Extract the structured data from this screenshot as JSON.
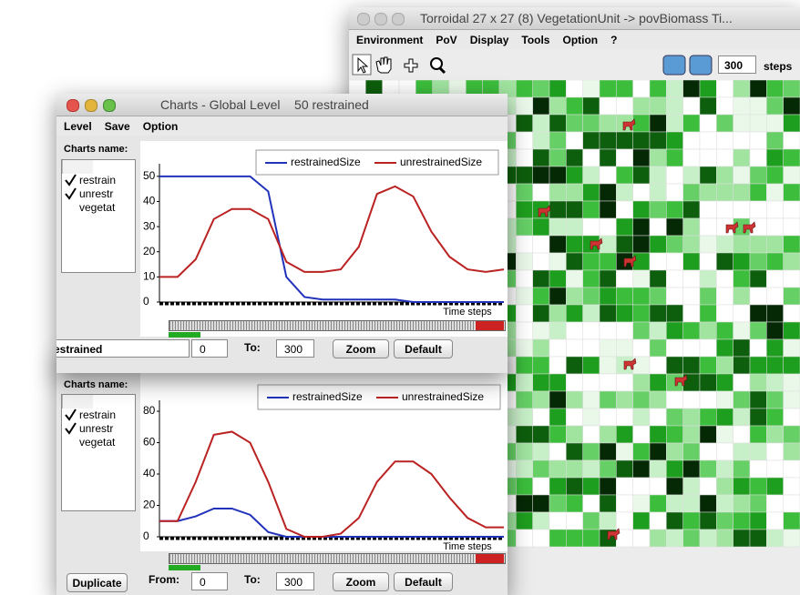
{
  "vegetation_window": {
    "title": "Torroidal 27 x 27 (8)  VegetationUnit -> povBiomass  Ti...",
    "menu": [
      "Environment",
      "PoV",
      "Display",
      "Tools",
      "Option",
      "?"
    ],
    "steps_value": "300",
    "steps_label": "steps"
  },
  "charts_window": {
    "title": "Charts - Global Level    50 restrained",
    "menu": [
      "Level",
      "Save",
      "Option"
    ],
    "list_label": "Charts name:",
    "list": [
      "restrain",
      "unrestr",
      "vegetat"
    ],
    "chart": {
      "type": "line",
      "xlabel": "Time steps",
      "ylim": [
        0,
        55
      ],
      "yticks": [
        0,
        10,
        20,
        30,
        40,
        50
      ],
      "series": [
        {
          "name": "restrainedSize",
          "color": "#2233bb",
          "values": [
            50,
            50,
            50,
            50,
            50,
            50,
            44,
            10,
            2,
            1,
            1,
            1,
            1,
            1,
            0,
            0,
            0,
            0,
            0,
            0
          ]
        },
        {
          "name": "unrestrainedSize",
          "color": "#bb2222",
          "values": [
            10,
            10,
            17,
            33,
            37,
            37,
            33,
            16,
            12,
            12,
            13,
            22,
            43,
            46,
            42,
            28,
            18,
            13,
            12,
            13
          ]
        }
      ]
    },
    "name_field": "estrained",
    "from_value": "0",
    "to_label": "To:",
    "to_value": "300",
    "zoom": "Zoom",
    "default": "Default"
  },
  "second_window": {
    "list_label": "Charts name:",
    "list": [
      "restrain",
      "unrestr",
      "vegetat"
    ],
    "chart": {
      "type": "line",
      "xlabel": "Time steps",
      "ylim": [
        0,
        87
      ],
      "yticks": [
        0,
        20,
        40,
        60,
        80
      ],
      "series": [
        {
          "name": "restrainedSize",
          "color": "#2233bb",
          "values": [
            10,
            10,
            13,
            18,
            18,
            14,
            3,
            0,
            0,
            0,
            0,
            0,
            0,
            0,
            0,
            0,
            0,
            0,
            0,
            0
          ]
        },
        {
          "name": "unrestrainedSize",
          "color": "#bb2222",
          "values": [
            10,
            10,
            35,
            65,
            67,
            60,
            35,
            5,
            0,
            0,
            2,
            12,
            35,
            48,
            48,
            40,
            25,
            12,
            6,
            6
          ]
        }
      ]
    },
    "duplicate": "Duplicate",
    "from_label": "From:",
    "from_value": "0",
    "to_label": "To:",
    "to_value": "300",
    "zoom": "Zoom",
    "default": "Default"
  }
}
